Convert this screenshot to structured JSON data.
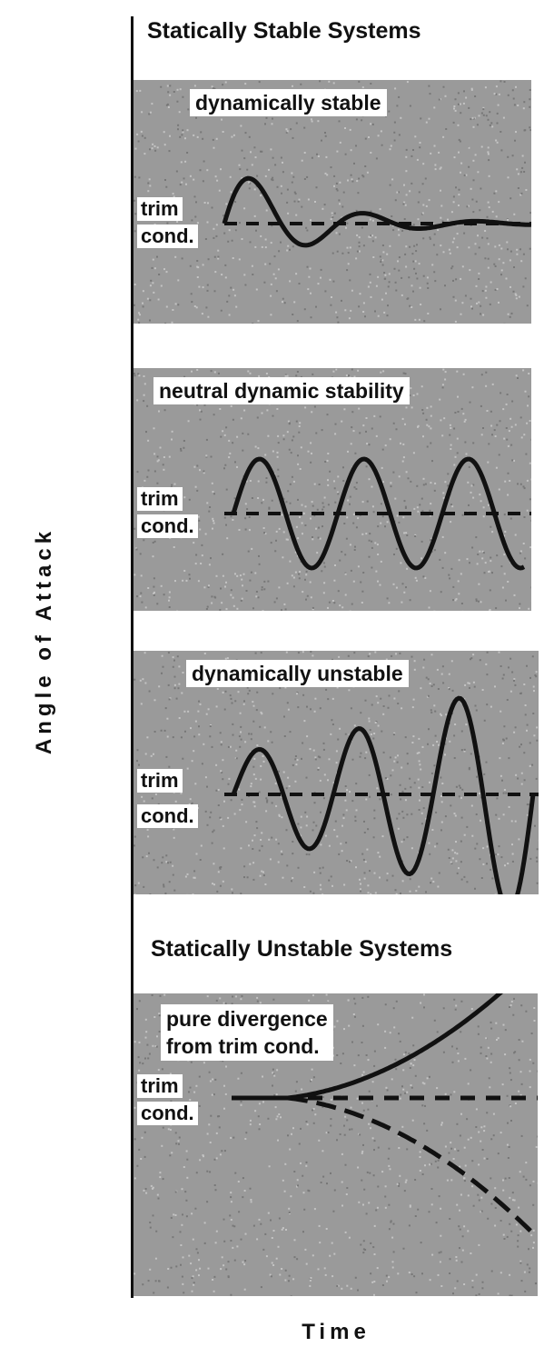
{
  "headings": {
    "stable": "Statically Stable Systems",
    "unstable": "Statically Unstable Systems"
  },
  "axes": {
    "y_label": "Angle of Attack",
    "x_label": "Time"
  },
  "panels": [
    {
      "title": "dynamically stable",
      "trim_1": "trim",
      "trim_2": "cond.",
      "behavior": "damped oscillation"
    },
    {
      "title": "neutral dynamic stability",
      "trim_1": "trim",
      "trim_2": "cond.",
      "behavior": "constant amplitude oscillation"
    },
    {
      "title": "dynamically unstable",
      "trim_1": "trim",
      "trim_2": "cond.",
      "behavior": "growing oscillation"
    },
    {
      "title_line_1": "pure divergence",
      "title_line_2": "from trim cond.",
      "trim_1": "trim",
      "trim_2": "cond.",
      "behavior": "divergence"
    }
  ],
  "colors": {
    "panel": "#9a9a9a",
    "ink": "#111111",
    "label_bg": "#ffffff"
  }
}
